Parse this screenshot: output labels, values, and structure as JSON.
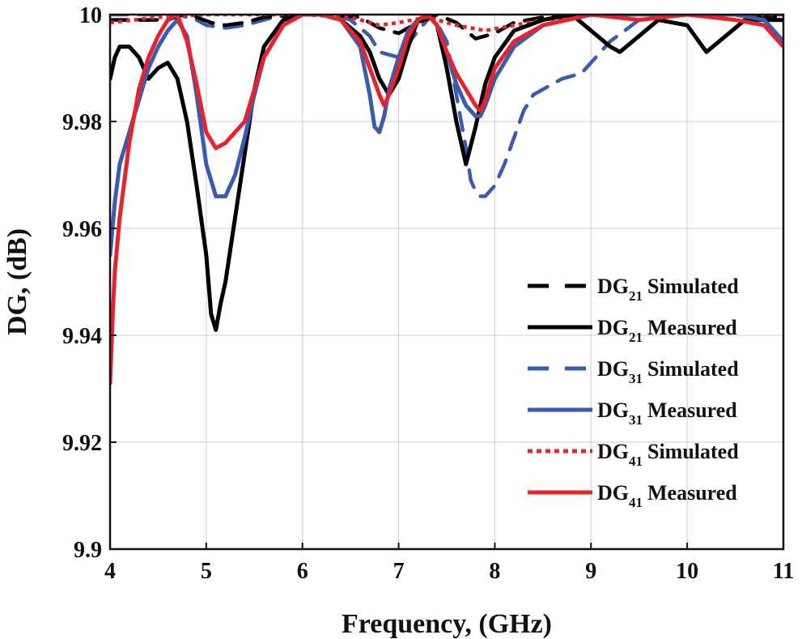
{
  "chart_data": {
    "type": "line",
    "xlabel": "Frequency, (GHz)",
    "ylabel": "DG, (dB)",
    "xlim": [
      4,
      11
    ],
    "ylim": [
      9.9,
      10
    ],
    "xticks": [
      4,
      5,
      6,
      7,
      8,
      9,
      10,
      11
    ],
    "yticks": [
      9.9,
      9.92,
      9.94,
      9.96,
      9.98,
      10
    ],
    "xtick_labels": [
      "4",
      "5",
      "6",
      "7",
      "8",
      "9",
      "10",
      "11"
    ],
    "ytick_labels": [
      "9.9",
      "9.92",
      "9.94",
      "9.96",
      "9.98",
      "10"
    ],
    "grid": true,
    "legend_position": "bottom-right",
    "series": [
      {
        "name": "DG21 Simulated",
        "legend_main": "DG",
        "legend_sub": "21",
        "legend_suffix": "Simulated",
        "color": "#000000",
        "style": "dashed",
        "x": [
          4.0,
          4.3,
          4.6,
          4.75,
          4.9,
          5.05,
          5.2,
          5.4,
          5.6,
          6.0,
          6.3,
          6.6,
          6.8,
          7.0,
          7.2,
          7.4,
          7.6,
          7.8,
          8.0,
          8.2,
          8.5,
          9.0,
          9.5,
          10.0,
          10.5,
          11.0
        ],
        "y": [
          9.999,
          9.999,
          9.999,
          10.0,
          9.9995,
          9.9985,
          9.998,
          9.9985,
          9.9995,
          10.0,
          10.0,
          9.9995,
          9.9975,
          9.9965,
          9.9985,
          10.0,
          9.9985,
          9.9955,
          9.9965,
          9.9985,
          9.9995,
          10.0,
          10.0,
          10.0,
          10.0,
          9.9995
        ]
      },
      {
        "name": "DG21 Measured",
        "legend_main": "DG",
        "legend_sub": "21",
        "legend_suffix": "Measured",
        "color": "#000000",
        "style": "solid",
        "x": [
          4.0,
          4.05,
          4.1,
          4.2,
          4.3,
          4.4,
          4.5,
          4.6,
          4.7,
          4.8,
          4.9,
          5.0,
          5.05,
          5.1,
          5.15,
          5.2,
          5.3,
          5.4,
          5.5,
          5.6,
          5.8,
          6.0,
          6.2,
          6.4,
          6.6,
          6.7,
          6.8,
          6.9,
          7.0,
          7.1,
          7.2,
          7.3,
          7.4,
          7.5,
          7.6,
          7.7,
          7.8,
          7.9,
          8.0,
          8.2,
          8.5,
          8.8,
          9.0,
          9.2,
          9.3,
          9.5,
          9.7,
          10.0,
          10.2,
          10.4,
          10.6,
          11.0
        ],
        "y": [
          9.988,
          9.992,
          9.994,
          9.994,
          9.992,
          9.988,
          9.99,
          9.991,
          9.988,
          9.98,
          9.968,
          9.955,
          9.944,
          9.941,
          9.946,
          9.95,
          9.962,
          9.974,
          9.986,
          9.994,
          9.999,
          10.0,
          10.0,
          9.999,
          9.996,
          9.993,
          9.988,
          9.985,
          9.988,
          9.994,
          9.999,
          10.0,
          9.998,
          9.99,
          9.98,
          9.972,
          9.979,
          9.987,
          9.992,
          9.997,
          9.999,
          10.0,
          9.997,
          9.994,
          9.993,
          9.996,
          9.999,
          9.998,
          9.993,
          9.996,
          9.999,
          9.999
        ]
      },
      {
        "name": "DG31 Simulated",
        "legend_main": "DG",
        "legend_sub": "31",
        "legend_suffix": "Simulated",
        "color": "#3b5bb0",
        "style": "dashed",
        "x": [
          4.0,
          4.3,
          4.5,
          4.7,
          4.9,
          5.0,
          5.2,
          5.4,
          5.6,
          5.8,
          6.0,
          6.3,
          6.5,
          6.7,
          6.8,
          7.0,
          7.2,
          7.35,
          7.5,
          7.6,
          7.7,
          7.75,
          7.8,
          7.85,
          7.9,
          8.0,
          8.1,
          8.2,
          8.3,
          8.4,
          8.5,
          8.7,
          8.9,
          9.0,
          9.2,
          9.5,
          10.0,
          10.5,
          11.0
        ],
        "y": [
          10.0,
          10.0,
          10.0,
          10.0,
          9.999,
          9.998,
          9.9975,
          9.998,
          9.999,
          10.0,
          10.0,
          10.0,
          9.999,
          9.996,
          9.993,
          9.992,
          9.997,
          10.0,
          9.995,
          9.985,
          9.975,
          9.969,
          9.967,
          9.966,
          9.966,
          9.968,
          9.972,
          9.977,
          9.982,
          9.985,
          9.986,
          9.988,
          9.989,
          9.991,
          9.995,
          9.999,
          10.0,
          10.0,
          10.0
        ]
      },
      {
        "name": "DG31 Measured",
        "legend_main": "DG",
        "legend_sub": "31",
        "legend_suffix": "Measured",
        "color": "#3b5bb0",
        "style": "solid",
        "x": [
          4.0,
          4.05,
          4.1,
          4.2,
          4.3,
          4.4,
          4.5,
          4.6,
          4.7,
          4.8,
          4.9,
          5.0,
          5.1,
          5.2,
          5.3,
          5.4,
          5.5,
          5.6,
          5.8,
          6.0,
          6.2,
          6.4,
          6.6,
          6.7,
          6.75,
          6.8,
          6.85,
          6.9,
          7.0,
          7.1,
          7.2,
          7.3,
          7.4,
          7.5,
          7.6,
          7.7,
          7.8,
          7.85,
          7.9,
          8.0,
          8.2,
          8.5,
          9.0,
          9.5,
          10.0,
          10.5,
          10.8,
          11.0
        ],
        "y": [
          9.955,
          9.965,
          9.972,
          9.978,
          9.984,
          9.99,
          9.994,
          9.997,
          9.999,
          9.996,
          9.985,
          9.972,
          9.966,
          9.966,
          9.97,
          9.977,
          9.985,
          9.992,
          9.998,
          10.0,
          10.0,
          9.999,
          9.994,
          9.985,
          9.979,
          9.978,
          9.981,
          9.986,
          9.992,
          9.997,
          9.999,
          10.0,
          9.998,
          9.993,
          9.987,
          9.983,
          9.981,
          9.981,
          9.983,
          9.988,
          9.994,
          9.998,
          10.0,
          10.0,
          10.0,
          10.0,
          9.999,
          9.995
        ]
      },
      {
        "name": "DG41 Simulated",
        "legend_main": "DG",
        "legend_sub": "41",
        "legend_suffix": "Simulated",
        "color": "#e8222a",
        "style": "dotted",
        "x": [
          4.0,
          4.5,
          5.0,
          5.5,
          6.0,
          6.5,
          6.8,
          7.0,
          7.3,
          7.6,
          7.9,
          8.2,
          8.5,
          9.0,
          9.5,
          10.0,
          10.5,
          11.0
        ],
        "y": [
          9.9985,
          9.9995,
          10.0,
          10.0,
          10.0,
          9.9995,
          9.998,
          9.9985,
          9.9995,
          9.998,
          9.997,
          9.998,
          9.999,
          10.0,
          10.0,
          10.0,
          10.0,
          10.0
        ]
      },
      {
        "name": "DG41 Measured",
        "legend_main": "DG",
        "legend_sub": "41",
        "legend_suffix": "Measured",
        "color": "#e8222a",
        "style": "solid",
        "x": [
          4.0,
          4.03,
          4.05,
          4.1,
          4.2,
          4.3,
          4.4,
          4.5,
          4.6,
          4.7,
          4.8,
          4.9,
          5.0,
          5.1,
          5.2,
          5.3,
          5.4,
          5.5,
          5.6,
          5.8,
          6.0,
          6.2,
          6.4,
          6.6,
          6.7,
          6.8,
          6.85,
          6.9,
          7.0,
          7.1,
          7.2,
          7.3,
          7.4,
          7.5,
          7.6,
          7.7,
          7.8,
          7.85,
          7.9,
          8.0,
          8.2,
          8.5,
          9.0,
          9.5,
          10.0,
          10.5,
          10.8,
          11.0
        ],
        "y": [
          9.931,
          9.945,
          9.952,
          9.962,
          9.976,
          9.986,
          9.992,
          9.996,
          9.999,
          10.0,
          9.995,
          9.987,
          9.978,
          9.975,
          9.976,
          9.978,
          9.98,
          9.986,
          9.992,
          9.998,
          10.0,
          10.0,
          9.999,
          9.995,
          9.99,
          9.985,
          9.983,
          9.985,
          9.99,
          9.996,
          9.999,
          10.0,
          9.998,
          9.993,
          9.989,
          9.986,
          9.983,
          9.982,
          9.984,
          9.99,
          9.995,
          9.998,
          10.0,
          9.999,
          10.0,
          9.999,
          9.998,
          9.994
        ]
      }
    ]
  }
}
